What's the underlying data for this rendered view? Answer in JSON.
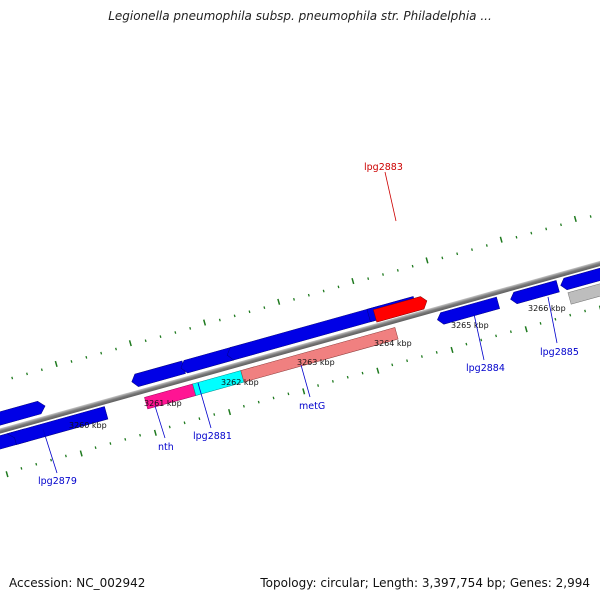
{
  "title": "Legionella pneumophila subsp. pneumophila str. Philadelphia ...",
  "footer": {
    "accession": "Accession: NC_002942",
    "summary": "Topology: circular; Length: 3,397,754 bp; Genes: 2,994"
  },
  "colors": {
    "backbone": "#8a8a8a",
    "tick": "#1f7a1f",
    "gene_blue": "#0000e6",
    "gene_red": "#ff0000",
    "gene_magenta": "#ff1493",
    "gene_cyan": "#00ffff",
    "gene_salmon": "#f08080",
    "gene_gray": "#bdbdbd",
    "label_blue": "#0000cc",
    "label_red": "#cc0000"
  },
  "ticks": [
    {
      "label": "3260 kbp",
      "kbp": 3260
    },
    {
      "label": "3261 kbp",
      "kbp": 3261
    },
    {
      "label": "3262 kbp",
      "kbp": 3262
    },
    {
      "label": "3263 kbp",
      "kbp": 3263
    },
    {
      "label": "3264 kbp",
      "kbp": 3264
    },
    {
      "label": "3265 kbp",
      "kbp": 3265
    },
    {
      "label": "3266 kbp",
      "kbp": 3266
    }
  ],
  "gene_labels": [
    {
      "name": "lpg2879",
      "color": "label_blue"
    },
    {
      "name": "nth",
      "color": "label_blue"
    },
    {
      "name": "lpg2881",
      "color": "label_blue"
    },
    {
      "name": "metG",
      "color": "label_blue"
    },
    {
      "name": "lpg2883",
      "color": "label_red"
    },
    {
      "name": "lpg2884",
      "color": "label_blue"
    },
    {
      "name": "lpg2885",
      "color": "label_blue"
    }
  ]
}
